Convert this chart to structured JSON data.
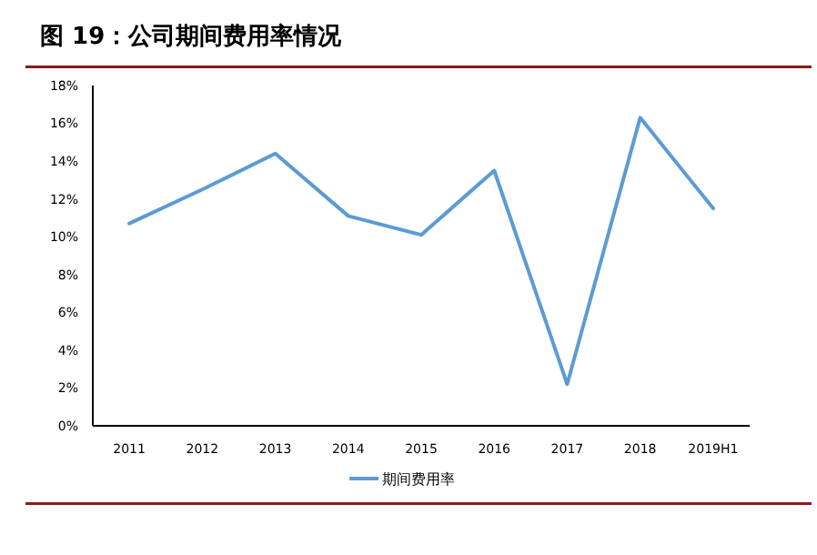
{
  "chart_data": {
    "type": "line",
    "title": "图 19：公司期间费用率情况",
    "categories": [
      "2011",
      "2012",
      "2013",
      "2014",
      "2015",
      "2016",
      "2017",
      "2018",
      "2019H1"
    ],
    "series": [
      {
        "name": "期间费用率",
        "color": "#5b9bd5",
        "values": [
          10.7,
          12.5,
          14.4,
          11.1,
          10.1,
          13.5,
          2.2,
          16.3,
          11.5
        ]
      }
    ],
    "ylim": [
      0,
      18
    ],
    "yticks": [
      {
        "value": 0,
        "label": "0%"
      },
      {
        "value": 2,
        "label": "2%"
      },
      {
        "value": 4,
        "label": "4%"
      },
      {
        "value": 6,
        "label": "6%"
      },
      {
        "value": 8,
        "label": "8%"
      },
      {
        "value": 10,
        "label": "10%"
      },
      {
        "value": 12,
        "label": "12%"
      },
      {
        "value": 14,
        "label": "14%"
      },
      {
        "value": 16,
        "label": "16%"
      },
      {
        "value": 18,
        "label": "18%"
      }
    ],
    "legend": "bottom",
    "grid": false
  }
}
